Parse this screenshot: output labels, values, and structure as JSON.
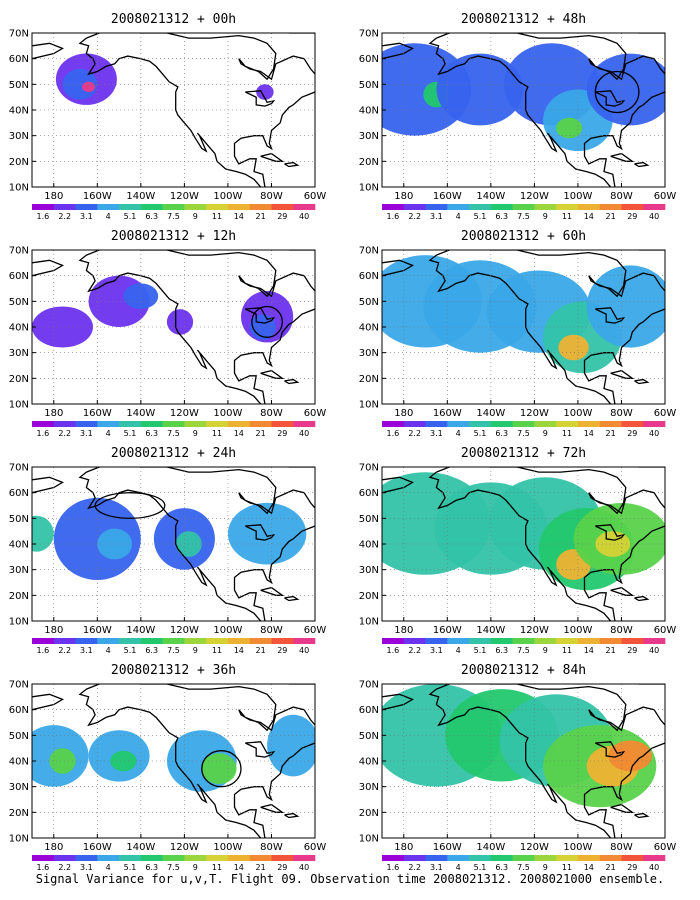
{
  "palette": [
    "#9a00d8",
    "#6b33ee",
    "#3763ee",
    "#3aa8e8",
    "#33c3a8",
    "#22c86e",
    "#58d24a",
    "#9ad63c",
    "#d6d236",
    "#eeb233",
    "#f28a33",
    "#f2553a",
    "#e83a8a"
  ],
  "contour_levels": [
    "1.6",
    "2.2",
    "3.1",
    "4",
    "5.1",
    "6.3",
    "7.5",
    "9",
    "11",
    "14",
    "21",
    "29",
    "40"
  ],
  "lat_labels": [
    "10N",
    "20N",
    "30N",
    "40N",
    "50N",
    "60N",
    "70N"
  ],
  "lon_labels": [
    "180",
    "160W",
    "140W",
    "120W",
    "100W",
    "80W",
    "60W"
  ],
  "panels": [
    {
      "title": "2008021312 + 00h",
      "level": 1
    },
    {
      "title": "2008021312 + 48h",
      "level": 3
    },
    {
      "title": "2008021312 + 12h",
      "level": 1
    },
    {
      "title": "2008021312 + 60h",
      "level": 4
    },
    {
      "title": "2008021312 + 24h",
      "level": 2
    },
    {
      "title": "2008021312 + 72h",
      "level": 5
    },
    {
      "title": "2008021312 + 36h",
      "level": 3
    },
    {
      "title": "2008021312 + 84h",
      "level": 6
    }
  ],
  "caption": "Signal Variance for u,v,T. Flight 09. Observation time 2008021312. 2008021000 ensemble."
}
